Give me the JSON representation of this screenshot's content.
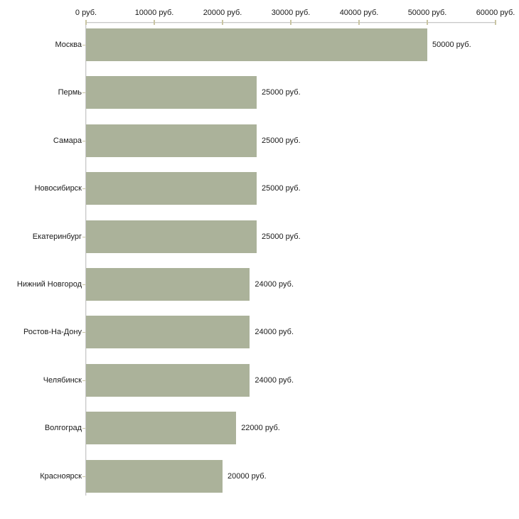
{
  "chart_data": {
    "type": "bar",
    "orientation": "horizontal",
    "title": "",
    "xlabel": "",
    "ylabel": "",
    "categories": [
      "Москва",
      "Пермь",
      "Самара",
      "Новосибирск",
      "Екатеринбург",
      "Нижний Новгород",
      "Ростов-На-Дону",
      "Челябинск",
      "Волгоград",
      "Красноярск"
    ],
    "values": [
      50000,
      25000,
      25000,
      25000,
      25000,
      24000,
      24000,
      24000,
      22000,
      20000
    ],
    "value_labels": [
      "50000 руб.",
      "25000 руб.",
      "25000 руб.",
      "25000 руб.",
      "25000 руб.",
      "24000 руб.",
      "24000 руб.",
      "24000 руб.",
      "22000 руб.",
      "20000 руб."
    ],
    "x_ticks": [
      0,
      10000,
      20000,
      30000,
      40000,
      50000,
      60000
    ],
    "x_tick_labels": [
      "0 руб.",
      "10000 руб.",
      "20000 руб.",
      "30000 руб.",
      "40000 руб.",
      "50000 руб.",
      "60000 руб."
    ],
    "xlim": [
      0,
      60000
    ],
    "grid": false,
    "legend": false,
    "colors": {
      "bar": "#abb29a",
      "axis_line": "#c9c9c9",
      "tick_mark": "#c9c5a3",
      "text": "#1a1a1a",
      "background": "#ffffff"
    }
  }
}
